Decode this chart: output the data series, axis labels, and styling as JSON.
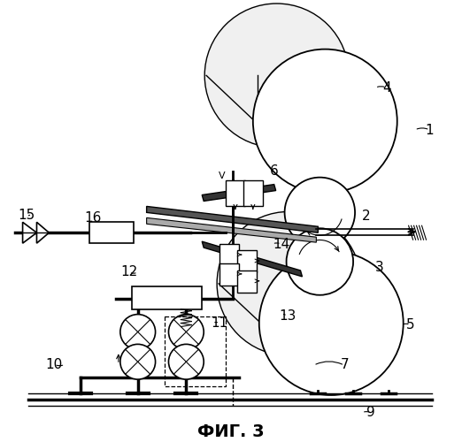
{
  "title": "ФИГ. 3",
  "bg_color": "#ffffff",
  "line_color": "#000000",
  "figsize": [
    5.22,
    5.0
  ],
  "dpi": 100
}
